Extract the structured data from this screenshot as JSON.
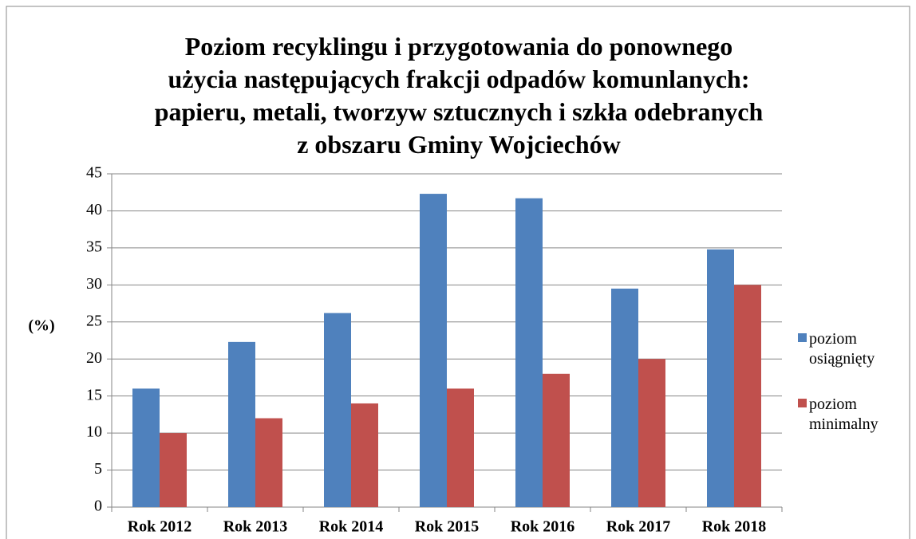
{
  "chart_data": {
    "type": "bar",
    "title": "Poziom recyklingu i przygotowania do ponownego\nużycia następujących frakcji odpadów komunlanych:\npapieru, metali, tworzyw sztucznych i szkła odebranych\nz obszaru Gminy Wojciechów",
    "y_label": "(%)",
    "categories": [
      "Rok 2012",
      "Rok 2013",
      "Rok 2014",
      "Rok 2015",
      "Rok 2016",
      "Rok 2017",
      "Rok 2018"
    ],
    "series": [
      {
        "name": "poziom osiągnięty",
        "color": "#4f81bd",
        "values": [
          16,
          22.3,
          26.2,
          42.3,
          41.7,
          29.5,
          34.8
        ]
      },
      {
        "name": "poziom minimalny",
        "color": "#c0504d",
        "values": [
          10,
          12,
          14,
          16,
          18,
          20,
          30
        ]
      }
    ],
    "ylim": [
      0,
      45
    ],
    "yticks": [
      0,
      5,
      10,
      15,
      20,
      25,
      30,
      35,
      40,
      45
    ],
    "grid": true,
    "legend": "right"
  }
}
